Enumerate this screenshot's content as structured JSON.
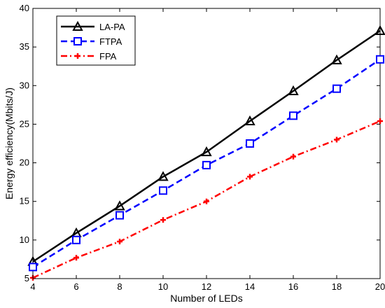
{
  "chart_data": {
    "type": "line",
    "xlabel": "Number of LEDs",
    "ylabel": "Energy efficiency(Mbits/J)",
    "x": [
      4,
      6,
      8,
      10,
      12,
      14,
      16,
      18,
      20
    ],
    "xlim": [
      4,
      20
    ],
    "ylim": [
      5,
      40
    ],
    "xticks": [
      "4",
      "6",
      "8",
      "10",
      "12",
      "14",
      "16",
      "18",
      "20"
    ],
    "yticks": [
      "5",
      "10",
      "15",
      "20",
      "25",
      "30",
      "35",
      "40"
    ],
    "grid": false,
    "legend_position": "top-left",
    "series": [
      {
        "name": "LA-PA",
        "values": [
          7.2,
          10.9,
          14.4,
          18.2,
          21.4,
          25.4,
          29.3,
          33.3,
          37.1
        ],
        "color": "#000000",
        "line_style": "solid",
        "marker": "triangle"
      },
      {
        "name": "FTPA",
        "values": [
          6.5,
          10.0,
          13.2,
          16.4,
          19.7,
          22.5,
          26.1,
          29.6,
          33.4
        ],
        "color": "#0000ff",
        "line_style": "dashed",
        "marker": "square"
      },
      {
        "name": "FPA",
        "values": [
          5.1,
          7.7,
          9.8,
          12.6,
          15.0,
          18.2,
          20.8,
          23.0,
          25.4
        ],
        "color": "#ff0000",
        "line_style": "dash-dot",
        "marker": "plus"
      }
    ]
  }
}
